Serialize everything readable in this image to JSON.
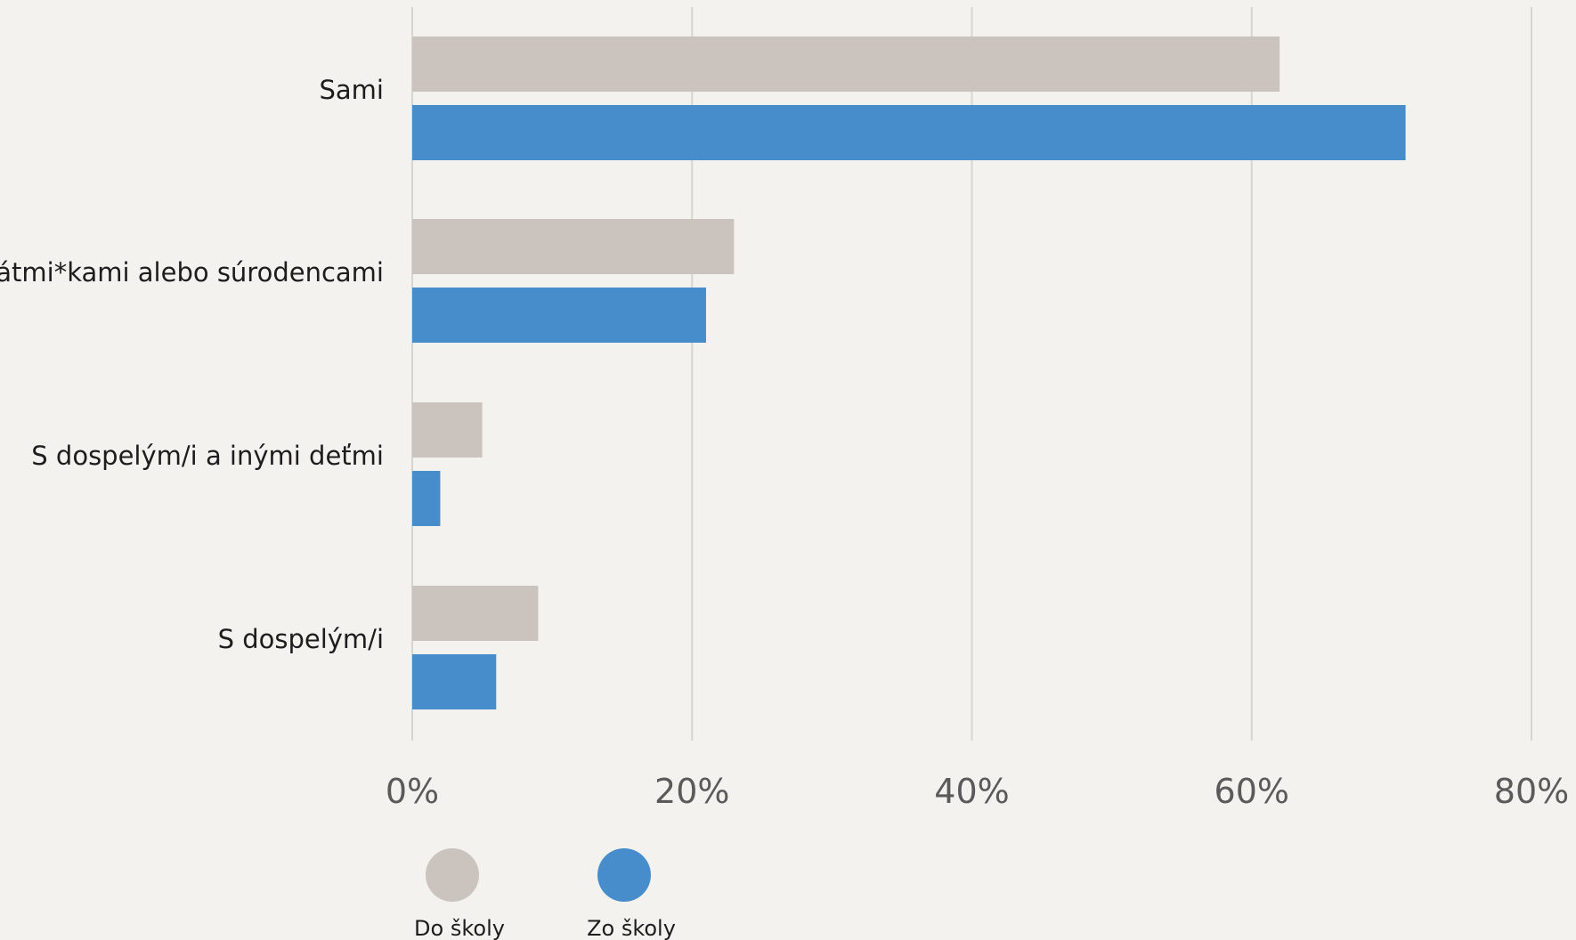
{
  "chart_data": {
    "type": "bar",
    "orientation": "horizontal",
    "categories": [
      "Sami",
      "S kamarátmi*kami alebo súrodencami",
      "S dospelým/i a inými deťmi",
      "S dospelým/i"
    ],
    "series": [
      {
        "name": "Do školy",
        "color": "#cbc3bd",
        "values": [
          62,
          23,
          5,
          9
        ]
      },
      {
        "name": "Zo školy",
        "color": "#478dcb",
        "values": [
          71,
          21,
          2,
          6
        ]
      }
    ],
    "xlim": [
      0,
      80
    ],
    "xticks": [
      0,
      20,
      40,
      60,
      80
    ],
    "tick_suffix": "%",
    "grid": true,
    "legend_position": "bottom-left"
  }
}
